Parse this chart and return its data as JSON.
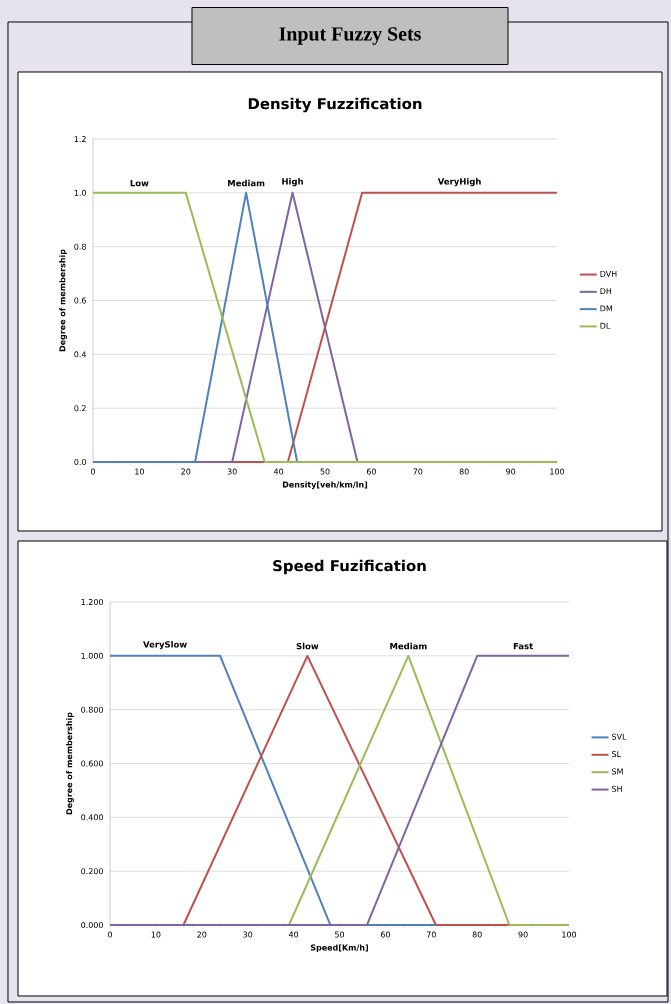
{
  "chart_data": [
    {
      "type": "line",
      "title": "Density Fuzzification",
      "xlabel": "Density[veh/km/ln]",
      "ylabel": "Degree of membership",
      "xlim": [
        0,
        100
      ],
      "xticks": [
        0,
        10,
        20,
        30,
        40,
        50,
        60,
        70,
        80,
        90,
        100
      ],
      "ylim": [
        0,
        1.2
      ],
      "yticks": [
        {
          "value": 0,
          "label": "0.0"
        },
        {
          "value": 0.2,
          "label": "0.2"
        },
        {
          "value": 0.4,
          "label": "0.4"
        },
        {
          "value": 0.6,
          "label": "0.6"
        },
        {
          "value": 0.8,
          "label": "0.8"
        },
        {
          "value": 1,
          "label": "1.0"
        },
        {
          "value": 1.2,
          "label": "1.2"
        }
      ],
      "grid": "y",
      "legend": "right",
      "series": [
        {
          "name": "DVH",
          "color": "#c0504d",
          "x": [
            0,
            42,
            58,
            100
          ],
          "values": [
            0,
            0,
            1,
            1
          ]
        },
        {
          "name": "DH",
          "color": "#8064a2",
          "x": [
            0,
            30,
            43,
            57,
            100
          ],
          "values": [
            0,
            0,
            1,
            0,
            0
          ]
        },
        {
          "name": "DM",
          "color": "#4f81bd",
          "x": [
            0,
            22,
            33,
            44,
            100
          ],
          "values": [
            0,
            0,
            1,
            0,
            0
          ]
        },
        {
          "name": "DL",
          "color": "#9bbb59",
          "x": [
            0,
            20,
            37,
            100
          ],
          "values": [
            1,
            1,
            0,
            0
          ]
        }
      ],
      "annotations": [
        "Input Fuzzy Sets",
        "Low",
        "Mediam",
        "High",
        "VeryHigh"
      ]
    },
    {
      "type": "line",
      "title": "Speed Fuzification",
      "xlabel": "Speed[Km/h]",
      "ylabel": "Degree of membership",
      "xlim": [
        0,
        100
      ],
      "xticks": [
        0,
        10,
        20,
        30,
        40,
        50,
        60,
        70,
        80,
        90,
        100
      ],
      "ylim": [
        0,
        1.2
      ],
      "yticks": [
        {
          "value": 0,
          "label": "0.000"
        },
        {
          "value": 0.2,
          "label": "0.200"
        },
        {
          "value": 0.4,
          "label": "0.400"
        },
        {
          "value": 0.6,
          "label": "0.600"
        },
        {
          "value": 0.8,
          "label": "0.800"
        },
        {
          "value": 1,
          "label": "1.000"
        },
        {
          "value": 1.2,
          "label": "1.200"
        }
      ],
      "grid": "y",
      "legend": "right",
      "series": [
        {
          "name": "SVL",
          "color": "#4f81bd",
          "x": [
            0,
            24,
            48,
            100
          ],
          "values": [
            1,
            1,
            0,
            0
          ]
        },
        {
          "name": "SL",
          "color": "#c0504d",
          "x": [
            0,
            16,
            43,
            71,
            100
          ],
          "values": [
            0,
            0,
            1,
            0,
            0
          ]
        },
        {
          "name": "SM",
          "color": "#9bbb59",
          "x": [
            0,
            39,
            65,
            87,
            100
          ],
          "values": [
            0,
            0,
            1,
            0,
            0
          ]
        },
        {
          "name": "SH",
          "color": "#8064a2",
          "x": [
            0,
            56,
            80,
            100
          ],
          "values": [
            0,
            0,
            1,
            1
          ]
        }
      ],
      "annotations": [
        "VerySlow",
        "Slow",
        "Mediam",
        "Fast"
      ]
    }
  ]
}
